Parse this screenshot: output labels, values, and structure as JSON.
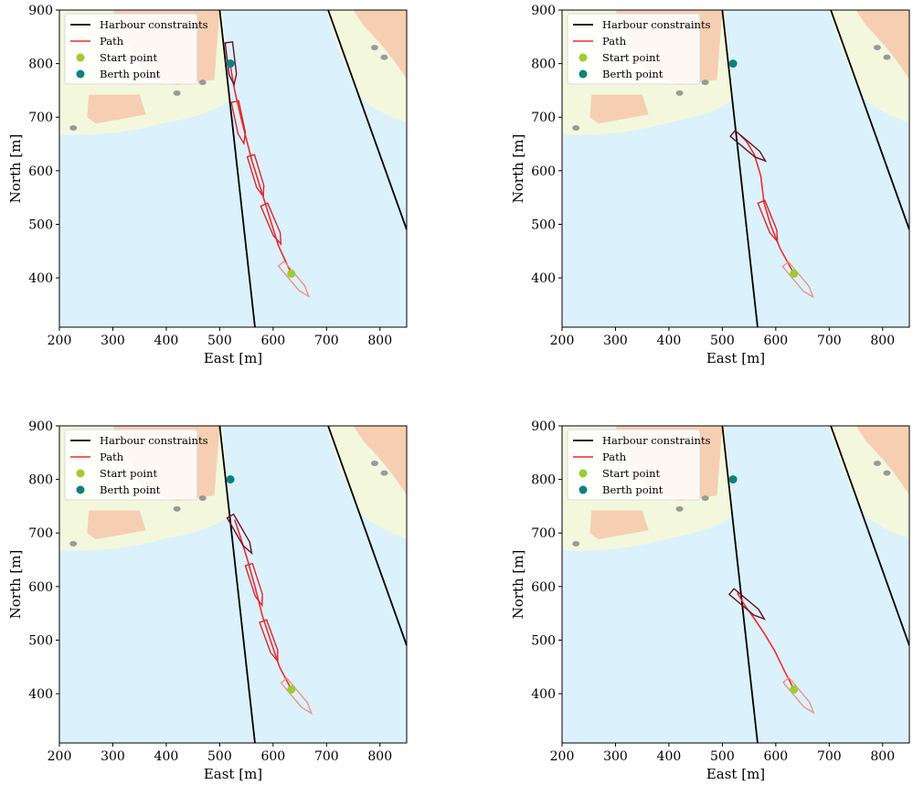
{
  "colors": {
    "water": "#dbf1fc",
    "land": "#f3f8dd",
    "building": "#f6cfb2",
    "constraint": "#000000",
    "path": "#ee2c2c",
    "start": "#9acd32",
    "berth": "#0f8080",
    "vessel_past": "#f0947f",
    "vessel_mid": "#e0242a",
    "vessel_final": "#6b0f24"
  },
  "chart_data": [
    {
      "type": "line",
      "xlabel": "East [m]",
      "ylabel": "North [m]",
      "xlim": [
        200,
        850
      ],
      "ylim": [
        308,
        900
      ],
      "xticks": [
        200,
        300,
        400,
        500,
        600,
        700,
        800
      ],
      "yticks": [
        400,
        500,
        600,
        700,
        800,
        900
      ],
      "legend_position": "top-left",
      "legend": [
        "Harbour constraints",
        "Path",
        "Start point",
        "Berth point"
      ],
      "constraints": [
        {
          "x": [
            500,
            566
          ],
          "y": [
            900,
            308
          ]
        },
        {
          "x": [
            703,
            850
          ],
          "y": [
            900,
            490
          ]
        }
      ],
      "start_point": {
        "x": 634,
        "y": 408
      },
      "berth_point": {
        "x": 520,
        "y": 800
      },
      "path": {
        "x": [
          634,
          610,
          585,
          560,
          542,
          528,
          521,
          520
        ],
        "y": [
          408,
          460,
          540,
          620,
          690,
          750,
          790,
          800
        ]
      },
      "vessels": [
        {
          "x": 641,
          "y": 396,
          "heading": 140,
          "stage": "past"
        },
        {
          "x": 599,
          "y": 500,
          "heading": 157,
          "stage": "mid"
        },
        {
          "x": 570,
          "y": 590,
          "heading": 163,
          "stage": "mid"
        },
        {
          "x": 537,
          "y": 690,
          "heading": 168,
          "stage": "mid"
        },
        {
          "x": 522,
          "y": 800,
          "heading": 173,
          "stage": "final"
        }
      ]
    },
    {
      "type": "line",
      "xlabel": "East [m]",
      "ylabel": "North [m]",
      "xlim": [
        200,
        850
      ],
      "ylim": [
        308,
        900
      ],
      "xticks": [
        200,
        300,
        400,
        500,
        600,
        700,
        800
      ],
      "yticks": [
        400,
        500,
        600,
        700,
        800,
        900
      ],
      "legend_position": "top-left",
      "legend": [
        "Harbour constraints",
        "Path",
        "Start point",
        "Berth point"
      ],
      "constraints": [
        {
          "x": [
            500,
            566
          ],
          "y": [
            900,
            308
          ]
        },
        {
          "x": [
            703,
            850
          ],
          "y": [
            900,
            490
          ]
        }
      ],
      "start_point": {
        "x": 634,
        "y": 408
      },
      "berth_point": {
        "x": 520,
        "y": 800
      },
      "path": {
        "x": [
          634,
          608,
          590,
          578,
          572,
          560,
          545,
          532
        ],
        "y": [
          408,
          455,
          500,
          540,
          590,
          630,
          655,
          668
        ]
      },
      "vessels": [
        {
          "x": 644,
          "y": 395,
          "heading": 140,
          "stage": "past"
        },
        {
          "x": 588,
          "y": 505,
          "heading": 158,
          "stage": "mid"
        },
        {
          "x": 550,
          "y": 644,
          "heading": 130,
          "stage": "final"
        }
      ]
    },
    {
      "type": "line",
      "xlabel": "East [m]",
      "ylabel": "North [m]",
      "xlim": [
        200,
        850
      ],
      "ylim": [
        308,
        900
      ],
      "xticks": [
        200,
        300,
        400,
        500,
        600,
        700,
        800
      ],
      "yticks": [
        400,
        500,
        600,
        700,
        800,
        900
      ],
      "legend_position": "top-left",
      "legend": [
        "Harbour constraints",
        "Path",
        "Start point",
        "Berth point"
      ],
      "constraints": [
        {
          "x": [
            500,
            566
          ],
          "y": [
            900,
            308
          ]
        },
        {
          "x": [
            703,
            850
          ],
          "y": [
            900,
            490
          ]
        }
      ],
      "start_point": {
        "x": 634,
        "y": 408
      },
      "berth_point": {
        "x": 520,
        "y": 800
      },
      "path": {
        "x": [
          634,
          612,
          595,
          580,
          566,
          552,
          538,
          528
        ],
        "y": [
          408,
          450,
          500,
          545,
          600,
          650,
          695,
          725
        ]
      },
      "vessels": [
        {
          "x": 646,
          "y": 394,
          "heading": 140,
          "stage": "past"
        },
        {
          "x": 595,
          "y": 498,
          "heading": 160,
          "stage": "mid"
        },
        {
          "x": 567,
          "y": 603,
          "heading": 162,
          "stage": "mid"
        },
        {
          "x": 540,
          "y": 697,
          "heading": 150,
          "stage": "final"
        }
      ]
    },
    {
      "type": "line",
      "xlabel": "East [m]",
      "ylabel": "North [m]",
      "xlim": [
        200,
        850
      ],
      "ylim": [
        308,
        900
      ],
      "xticks": [
        200,
        300,
        400,
        500,
        600,
        700,
        800
      ],
      "yticks": [
        400,
        500,
        600,
        700,
        800,
        900
      ],
      "legend_position": "top-left",
      "legend": [
        "Harbour constraints",
        "Path",
        "Start point",
        "Berth point"
      ],
      "constraints": [
        {
          "x": [
            500,
            566
          ],
          "y": [
            900,
            308
          ]
        },
        {
          "x": [
            703,
            850
          ],
          "y": [
            900,
            490
          ]
        }
      ],
      "start_point": {
        "x": 634,
        "y": 408
      },
      "berth_point": {
        "x": 520,
        "y": 800
      },
      "path": {
        "x": [
          634,
          615,
          598,
          580,
          560,
          542,
          528
        ],
        "y": [
          408,
          445,
          480,
          510,
          540,
          565,
          588
        ]
      },
      "vessels": [
        {
          "x": 645,
          "y": 395,
          "heading": 140,
          "stage": "past"
        },
        {
          "x": 548,
          "y": 565,
          "heading": 130,
          "stage": "final"
        }
      ]
    }
  ]
}
